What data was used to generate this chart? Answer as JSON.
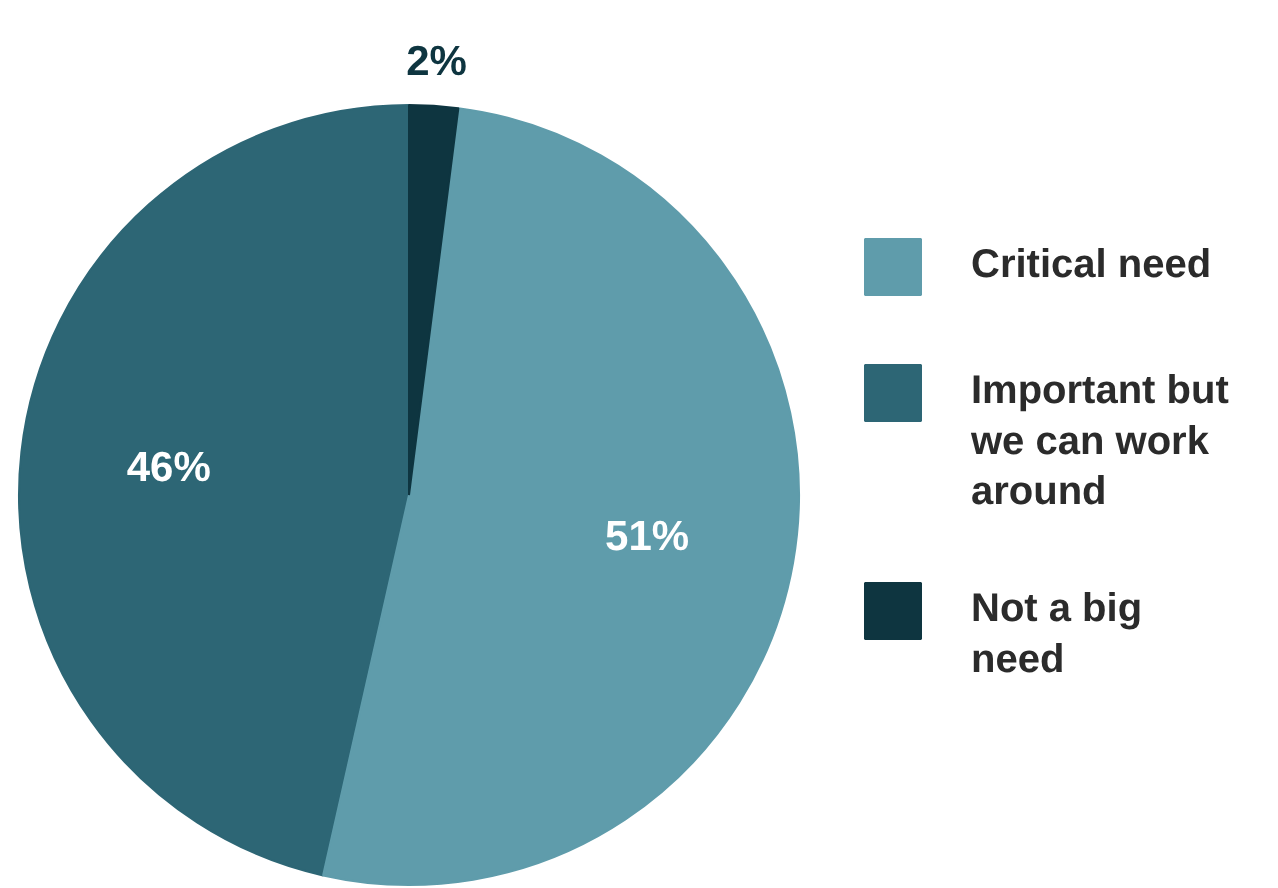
{
  "chart_data": {
    "type": "pie",
    "categories": [
      "Critical need",
      "Important but we can work around",
      "Not a big need"
    ],
    "values": [
      51,
      46,
      2
    ],
    "colors": [
      "#5f9cab",
      "#2d6675",
      "#0e3540"
    ],
    "value_labels": [
      "51%",
      "46%",
      "2%"
    ],
    "legend": "right"
  }
}
